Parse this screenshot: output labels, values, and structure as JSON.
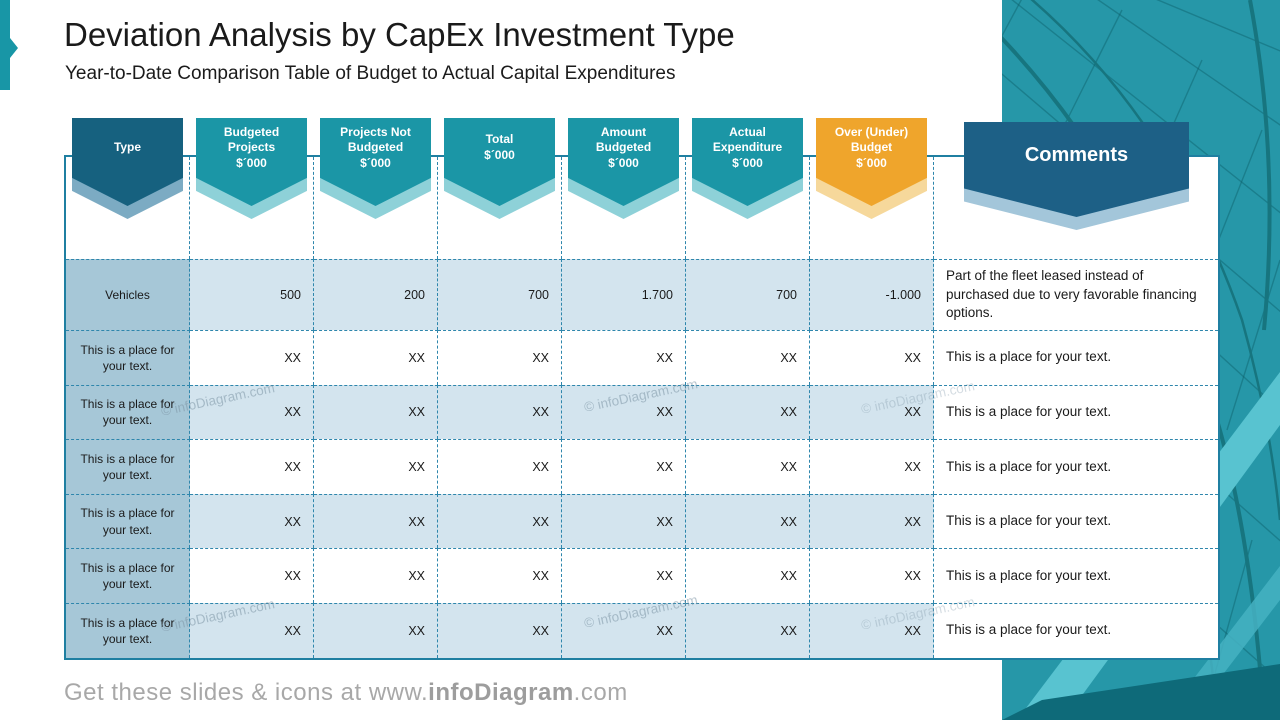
{
  "slide": {
    "title": "Deviation Analysis by CapEx Investment Type",
    "subtitle": "Year-to-Date Comparison Table of Budget to Actual Capital Expenditures",
    "footer": {
      "prefix": "Get these slides & icons at www.",
      "brand": "infoDiagram",
      "suffix": ".com"
    },
    "watermark": "© infoDiagram.com"
  },
  "colors": {
    "teal_header": "#1b96a6",
    "teal_header_light": "#8ed1d8",
    "navy_header": "#16617f",
    "navy_header_light": "#7cabc3",
    "orange_header": "#efa52c",
    "orange_header_light": "#f6d89b",
    "type_column_fill": "#a6c7d7",
    "shaded_row_fill": "#d3e4ee",
    "dashed_border": "#2e86ac",
    "accent": "#1896a6",
    "footer_gray": "#a8a8a8"
  },
  "table": {
    "columns": [
      {
        "id": "type",
        "label": "Type",
        "theme": "navy"
      },
      {
        "id": "budgeted-projects",
        "label": "Budgeted\nProjects\n$´000",
        "theme": "teal"
      },
      {
        "id": "projects-not-budgeted",
        "label": "Projects Not\nBudgeted\n$´000",
        "theme": "teal"
      },
      {
        "id": "total",
        "label": "Total\n$´000",
        "theme": "teal"
      },
      {
        "id": "amount-budgeted",
        "label": "Amount\nBudgeted\n$´000",
        "theme": "teal"
      },
      {
        "id": "actual-expenditure",
        "label": "Actual\nExpenditure\n$´000",
        "theme": "teal"
      },
      {
        "id": "over-under-budget",
        "label": "Over (Under)\nBudget\n$´000",
        "theme": "orange"
      },
      {
        "id": "comments",
        "label": "Comments",
        "theme": "navywide"
      }
    ],
    "rows": [
      {
        "type": "Vehicles",
        "values": [
          "500",
          "200",
          "700",
          "1.700",
          "700",
          "-1.000"
        ],
        "comment": "Part of the fleet leased instead of purchased due to very favorable financing options."
      },
      {
        "type": "This is a place for your text.",
        "values": [
          "XX",
          "XX",
          "XX",
          "XX",
          "XX",
          "XX"
        ],
        "comment": "This is a place for your text."
      },
      {
        "type": "This is a place for your text.",
        "values": [
          "XX",
          "XX",
          "XX",
          "XX",
          "XX",
          "XX"
        ],
        "comment": "This is a place for your text."
      },
      {
        "type": "This is a place for your text.",
        "values": [
          "XX",
          "XX",
          "XX",
          "XX",
          "XX",
          "XX"
        ],
        "comment": "This is a place for your text."
      },
      {
        "type": "This is a place for your text.",
        "values": [
          "XX",
          "XX",
          "XX",
          "XX",
          "XX",
          "XX"
        ],
        "comment": "This is a place for your text."
      },
      {
        "type": "This is a place for your text.",
        "values": [
          "XX",
          "XX",
          "XX",
          "XX",
          "XX",
          "XX"
        ],
        "comment": "This is a place for your text."
      },
      {
        "type": "This is a place for your text.",
        "values": [
          "XX",
          "XX",
          "XX",
          "XX",
          "XX",
          "XX"
        ],
        "comment": "This is a place for your text."
      }
    ]
  }
}
